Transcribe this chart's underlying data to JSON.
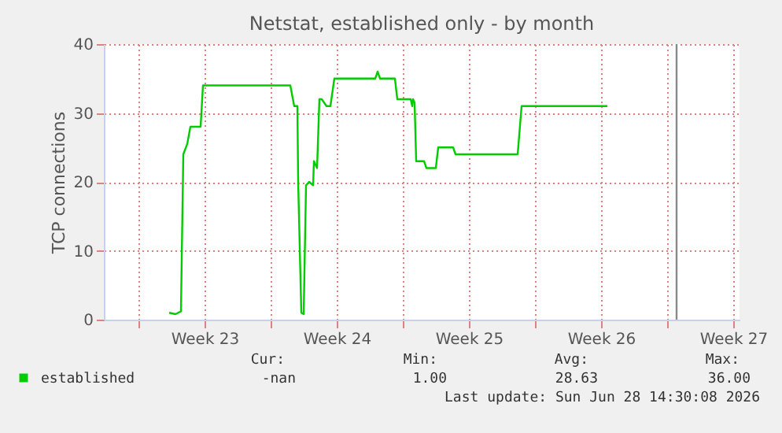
{
  "chart_data": {
    "type": "line",
    "title": "Netstat, established only - by month",
    "ylabel": "TCP connections",
    "x": [
      "2026-06-02T15:00",
      "2026-06-02T23:00",
      "2026-06-03T06:00",
      "2026-06-03T09:00",
      "2026-06-03T14:00",
      "2026-06-03T18:00",
      "2026-06-04T07:00",
      "2026-06-04T10:00",
      "2026-06-09T01:00",
      "2026-06-09T06:00",
      "2026-06-09T10:00",
      "2026-06-09T11:00",
      "2026-06-09T15:00",
      "2026-06-09T18:00",
      "2026-06-09T21:00",
      "2026-06-10T01:00",
      "2026-06-10T06:00",
      "2026-06-10T07:00",
      "2026-06-10T11:00",
      "2026-06-10T14:00",
      "2026-06-10T17:00",
      "2026-06-10T23:00",
      "2026-06-11T04:00",
      "2026-06-11T09:00",
      "2026-06-13T13:00",
      "2026-06-13T16:00",
      "2026-06-13T19:00",
      "2026-06-14T14:00",
      "2026-06-14T17:00",
      "2026-06-15T10:00",
      "2026-06-15T12:00",
      "2026-06-15T13:00",
      "2026-06-15T15:00",
      "2026-06-15T17:00",
      "2026-06-16T03:00",
      "2026-06-16T06:00",
      "2026-06-16T18:00",
      "2026-06-16T21:00",
      "2026-06-17T11:00",
      "2026-06-17T16:00",
      "2026-06-17T19:00",
      "2026-06-21T02:00",
      "2026-06-21T07:00",
      "2026-06-25T20:00"
    ],
    "series": [
      {
        "name": "established",
        "color": "#00cc00",
        "values": [
          1,
          0.8,
          1.2,
          24,
          25.5,
          28,
          28,
          34,
          34,
          31,
          31,
          20,
          1,
          0.8,
          19.5,
          20,
          19.5,
          23,
          22,
          32,
          32,
          31,
          31,
          35,
          35,
          36,
          35,
          35,
          32,
          32,
          31,
          32,
          31.5,
          23,
          23,
          22,
          22,
          25,
          25,
          25,
          24,
          24,
          31,
          31
        ]
      }
    ],
    "xlim": [
      "2026-05-30T04:00",
      "2026-07-02T20:00"
    ],
    "xticks": [
      {
        "value": "2026-06-01T00:00",
        "label": null
      },
      {
        "value": "2026-06-04T12:00",
        "label": "Week 23"
      },
      {
        "value": "2026-06-08T00:00",
        "label": null
      },
      {
        "value": "2026-06-11T12:00",
        "label": "Week 24"
      },
      {
        "value": "2026-06-15T00:00",
        "label": null
      },
      {
        "value": "2026-06-18T12:00",
        "label": "Week 25"
      },
      {
        "value": "2026-06-22T00:00",
        "label": null
      },
      {
        "value": "2026-06-25T12:00",
        "label": "Week 26"
      },
      {
        "value": "2026-06-29T00:00",
        "label": null
      },
      {
        "value": "2026-07-02T12:00",
        "label": "Week 27"
      }
    ],
    "ylim": [
      0,
      40
    ],
    "yticks": [
      0,
      10,
      20,
      30,
      40
    ],
    "grid": true,
    "legend": "bottom",
    "ref_lines": [
      {
        "axis": "x",
        "value": "2026-06-29T12:00",
        "color": "#888888"
      }
    ],
    "annotations": [
      "Cur:",
      "Min:",
      "Avg:",
      "Max:",
      "-nan",
      "1.00",
      "28.63",
      "36.00",
      "Last update: Sun Jun 28 14:30:08 2026"
    ]
  }
}
